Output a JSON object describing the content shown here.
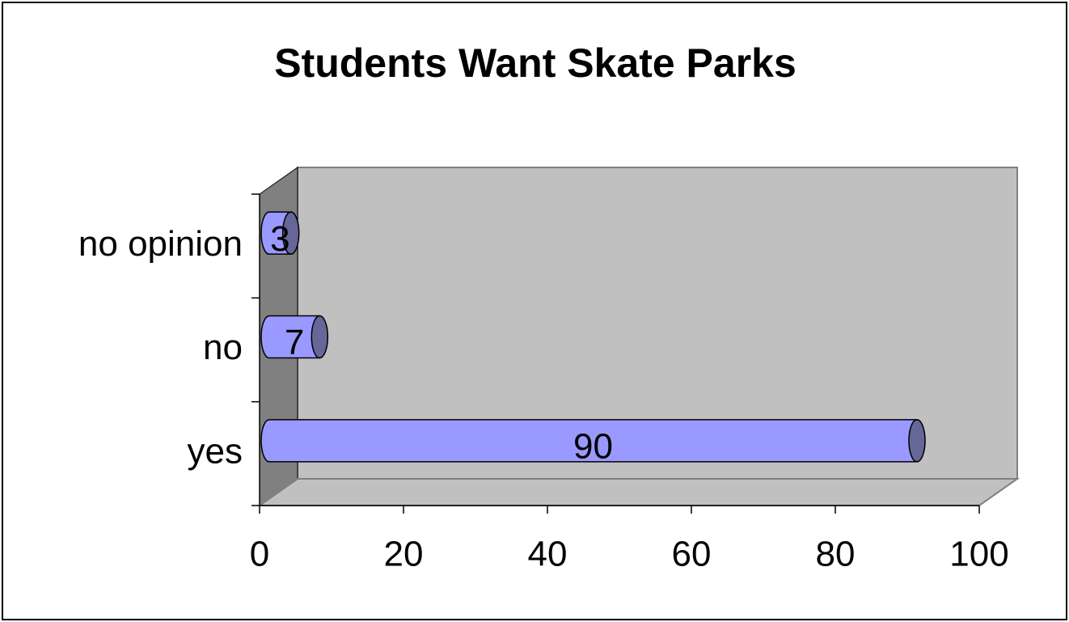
{
  "chart_data": {
    "type": "bar",
    "orientation": "horizontal",
    "title": "Students Want Skate Parks",
    "categories": [
      "yes",
      "no",
      "no opinion"
    ],
    "values": [
      90,
      7,
      3
    ],
    "color": "#9999ff",
    "xlim": [
      0,
      100
    ],
    "xticks": [
      0,
      20,
      40,
      60,
      80,
      100
    ]
  }
}
